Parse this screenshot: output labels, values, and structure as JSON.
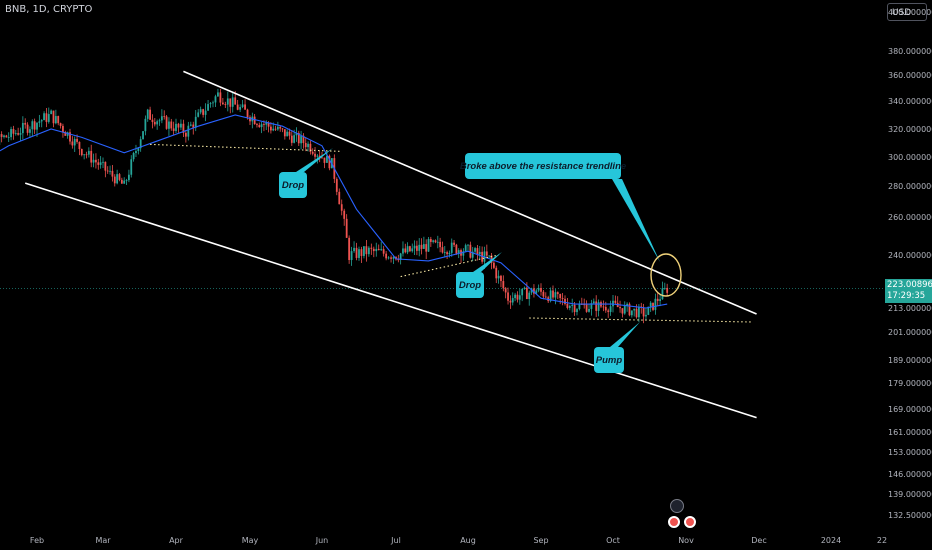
{
  "header": {
    "symbol": "BNB, 1D, CRYPTO"
  },
  "axis": {
    "currency": "USD",
    "last_price": "223.00896258",
    "countdown": "17:29:35"
  },
  "annotations": [
    {
      "id": "drop-1",
      "text": "Drop"
    },
    {
      "id": "drop-2",
      "text": "Drop"
    },
    {
      "id": "pump",
      "text": "Pump"
    },
    {
      "id": "breakout",
      "text": "Broke above the resistance trendline"
    }
  ],
  "colors": {
    "up": "#26a69a",
    "down": "#ef5350",
    "ma": "#2962ff",
    "channel": "#ffffff",
    "support": "#f5e6a3",
    "callout": "#26c6da",
    "highlight_circle": "#f0d27a"
  },
  "chart_data": {
    "type": "candlestick",
    "symbol": "BNB",
    "interval": "1D",
    "y_ticks": [
      "400.00000000",
      "380.00000000",
      "360.00000000",
      "340.00000000",
      "320.00000000",
      "300.00000000",
      "280.00000000",
      "260.00000000",
      "240.00000000",
      "213.00000000",
      "201.00000000",
      "189.00000000",
      "179.00000000",
      "169.00000000",
      "161.00000000",
      "153.00000000",
      "146.00000000",
      "139.00000000",
      "132.50000000"
    ],
    "x_ticks": [
      "Feb",
      "Mar",
      "Apr",
      "May",
      "Jun",
      "Jul",
      "Aug",
      "Sep",
      "Oct",
      "Nov",
      "Dec",
      "2024",
      "22"
    ],
    "close_path": [
      {
        "date": "2023-01-01",
        "close": 305
      },
      {
        "date": "2023-01-20",
        "close": 315
      },
      {
        "date": "2023-02-07",
        "close": 330
      },
      {
        "date": "2023-02-20",
        "close": 305
      },
      {
        "date": "2023-03-10",
        "close": 280
      },
      {
        "date": "2023-03-20",
        "close": 330
      },
      {
        "date": "2023-04-05",
        "close": 318
      },
      {
        "date": "2023-04-18",
        "close": 345
      },
      {
        "date": "2023-05-05",
        "close": 325
      },
      {
        "date": "2023-05-25",
        "close": 310
      },
      {
        "date": "2023-06-05",
        "close": 295
      },
      {
        "date": "2023-06-12",
        "close": 240
      },
      {
        "date": "2023-06-20",
        "close": 242
      },
      {
        "date": "2023-07-01",
        "close": 240
      },
      {
        "date": "2023-07-15",
        "close": 245
      },
      {
        "date": "2023-07-30",
        "close": 243
      },
      {
        "date": "2023-08-10",
        "close": 238
      },
      {
        "date": "2023-08-18",
        "close": 218
      },
      {
        "date": "2023-08-30",
        "close": 222
      },
      {
        "date": "2023-09-15",
        "close": 214
      },
      {
        "date": "2023-10-01",
        "close": 214
      },
      {
        "date": "2023-10-15",
        "close": 210
      },
      {
        "date": "2023-10-21",
        "close": 219
      },
      {
        "date": "2023-10-24",
        "close": 223
      }
    ],
    "moving_average": [
      {
        "date": "2023-01-01",
        "value": 290
      },
      {
        "date": "2023-01-20",
        "value": 308
      },
      {
        "date": "2023-02-07",
        "value": 320
      },
      {
        "date": "2023-02-20",
        "value": 314
      },
      {
        "date": "2023-03-10",
        "value": 303
      },
      {
        "date": "2023-03-25",
        "value": 312
      },
      {
        "date": "2023-04-10",
        "value": 322
      },
      {
        "date": "2023-04-25",
        "value": 330
      },
      {
        "date": "2023-05-15",
        "value": 322
      },
      {
        "date": "2023-06-01",
        "value": 308
      },
      {
        "date": "2023-06-15",
        "value": 265
      },
      {
        "date": "2023-07-01",
        "value": 238
      },
      {
        "date": "2023-07-15",
        "value": 237
      },
      {
        "date": "2023-08-01",
        "value": 242
      },
      {
        "date": "2023-08-15",
        "value": 236
      },
      {
        "date": "2023-09-01",
        "value": 218
      },
      {
        "date": "2023-09-15",
        "value": 215
      },
      {
        "date": "2023-10-01",
        "value": 215
      },
      {
        "date": "2023-10-15",
        "value": 213
      },
      {
        "date": "2023-10-24",
        "value": 215
      }
    ],
    "lines": [
      {
        "kind": "channel-upper",
        "from": {
          "date": "2023-04-04",
          "price": 363
        },
        "to": {
          "date": "2023-11-30",
          "price": 210
        }
      },
      {
        "kind": "channel-lower",
        "from": {
          "date": "2023-01-27",
          "price": 282
        },
        "to": {
          "date": "2023-11-30",
          "price": 166
        }
      },
      {
        "kind": "support",
        "from": {
          "date": "2023-03-21",
          "price": 309
        },
        "to": {
          "date": "2023-06-09",
          "price": 304
        }
      },
      {
        "kind": "support",
        "from": {
          "date": "2023-07-03",
          "price": 229
        },
        "to": {
          "date": "2023-08-14",
          "price": 240
        }
      },
      {
        "kind": "support",
        "from": {
          "date": "2023-08-27",
          "price": 208
        },
        "to": {
          "date": "2023-11-28",
          "price": 206
        }
      }
    ],
    "last_price": 223.00896258,
    "grid": false,
    "legend": "none"
  }
}
